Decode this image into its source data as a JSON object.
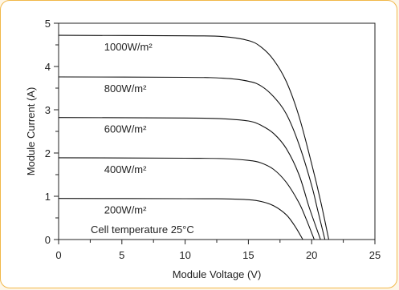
{
  "chart_data": {
    "type": "line",
    "xlabel": "Module Voltage (V)",
    "ylabel": "Module Current (A)",
    "xlim": [
      0,
      25
    ],
    "ylim": [
      0,
      5
    ],
    "xticks": [
      0,
      5,
      10,
      15,
      20,
      25
    ],
    "yticks": [
      0,
      1,
      2,
      3,
      4,
      5
    ],
    "grid": false,
    "annotation": "Cell temperature 25°C",
    "series": [
      {
        "name": "1000W/m²",
        "isc": 4.72,
        "voc": 21.35,
        "points": [
          [
            0,
            4.72
          ],
          [
            10,
            4.71
          ],
          [
            13,
            4.69
          ],
          [
            15,
            4.6
          ],
          [
            16,
            4.45
          ],
          [
            17,
            4.15
          ],
          [
            18,
            3.65
          ],
          [
            19,
            2.85
          ],
          [
            20,
            1.75
          ],
          [
            20.7,
            0.9
          ],
          [
            21.35,
            0
          ]
        ]
      },
      {
        "name": "800W/m²",
        "isc": 3.76,
        "voc": 21.05,
        "points": [
          [
            0,
            3.76
          ],
          [
            10,
            3.75
          ],
          [
            13,
            3.73
          ],
          [
            15,
            3.66
          ],
          [
            16,
            3.55
          ],
          [
            17,
            3.3
          ],
          [
            18,
            2.9
          ],
          [
            19,
            2.2
          ],
          [
            20,
            1.25
          ],
          [
            20.5,
            0.65
          ],
          [
            21.05,
            0
          ]
        ]
      },
      {
        "name": "600W/m²",
        "isc": 2.82,
        "voc": 20.7,
        "points": [
          [
            0,
            2.82
          ],
          [
            10,
            2.81
          ],
          [
            13,
            2.79
          ],
          [
            15,
            2.74
          ],
          [
            16,
            2.64
          ],
          [
            17,
            2.45
          ],
          [
            18,
            2.1
          ],
          [
            19,
            1.5
          ],
          [
            19.8,
            0.75
          ],
          [
            20.7,
            0
          ]
        ]
      },
      {
        "name": "400W/m²",
        "isc": 1.89,
        "voc": 20.2,
        "points": [
          [
            0,
            1.89
          ],
          [
            10,
            1.88
          ],
          [
            13,
            1.87
          ],
          [
            15,
            1.83
          ],
          [
            16,
            1.77
          ],
          [
            17,
            1.62
          ],
          [
            18,
            1.32
          ],
          [
            19,
            0.85
          ],
          [
            19.6,
            0.45
          ],
          [
            20.2,
            0
          ]
        ]
      },
      {
        "name": "200W/m²",
        "isc": 0.95,
        "voc": 19.3,
        "points": [
          [
            0,
            0.95
          ],
          [
            10,
            0.945
          ],
          [
            13,
            0.94
          ],
          [
            15,
            0.92
          ],
          [
            16,
            0.88
          ],
          [
            17,
            0.78
          ],
          [
            18,
            0.57
          ],
          [
            18.7,
            0.3
          ],
          [
            19.3,
            0
          ]
        ]
      }
    ]
  }
}
